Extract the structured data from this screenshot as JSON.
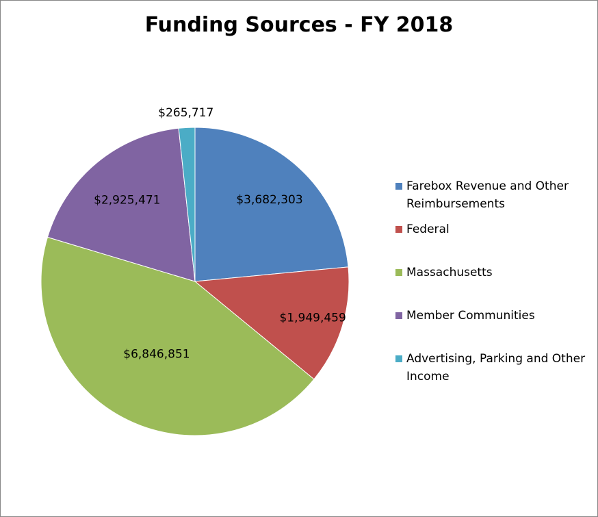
{
  "chart_data": {
    "type": "pie",
    "title": "Funding Sources - FY 2018",
    "legend_position": "right",
    "categories": [
      "Farebox Revenue and Other Reimbursements",
      "Federal",
      "Massachusetts",
      "Member Communities",
      "Advertising, Parking and Other Income"
    ],
    "values": [
      3682303,
      1949459,
      6846851,
      2925471,
      265717
    ],
    "value_labels": [
      "$3,682,303",
      "$1,949,459",
      "$6,846,851",
      "$2,925,471",
      "$265,717"
    ],
    "colors": [
      "#4f81bd",
      "#c0504d",
      "#9bbb59",
      "#8064a2",
      "#4bacc6"
    ]
  }
}
